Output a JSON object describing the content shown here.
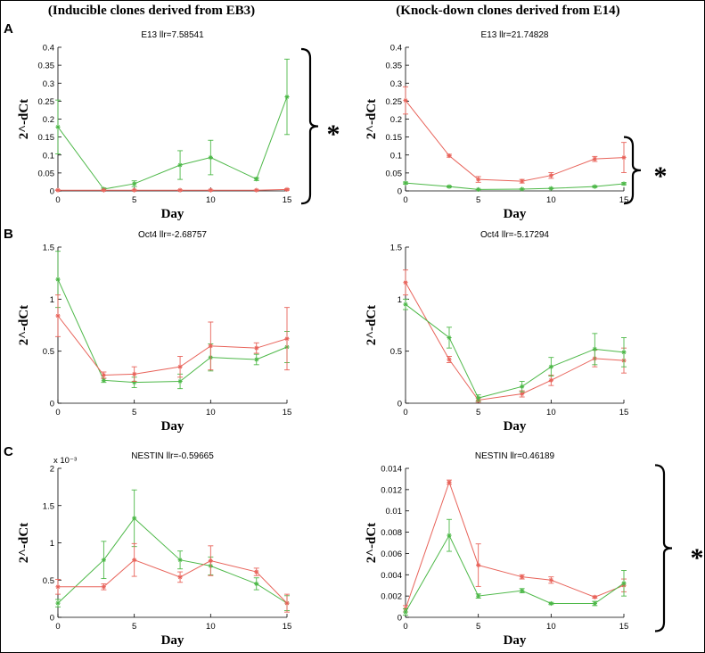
{
  "headers": {
    "left": "(Inducible clones derived from EB3)",
    "right": "(Knock-down clones derived from E14)"
  },
  "row_labels": [
    "A",
    "B",
    "C"
  ],
  "star": "*",
  "colors": {
    "red": "#e8635a",
    "green": "#4db848",
    "axis": "#000000"
  },
  "chart_data": [
    {
      "type": "line",
      "title": "E13 llr=7.58541",
      "xlabel": "Day",
      "ylabel": "2^-dCt",
      "xlim": [
        0,
        15
      ],
      "ylim": [
        0,
        0.4
      ],
      "xticks": [
        0,
        5,
        10,
        15
      ],
      "xtick_labels": [
        "0",
        "5",
        "10",
        "15"
      ],
      "yticks": [
        0,
        0.05,
        0.1,
        0.15,
        0.2,
        0.25,
        0.3,
        0.35,
        0.4
      ],
      "ytick_labels": [
        "0",
        "0.05",
        "0.1",
        "0.15",
        "0.2",
        "0.25",
        "0.3",
        "0.35",
        "0.4"
      ],
      "exponent_label": "",
      "series": [
        {
          "color": "green",
          "x": [
            0,
            3,
            5,
            8,
            10,
            13,
            15
          ],
          "y": [
            0.178,
            0.005,
            0.02,
            0.072,
            0.093,
            0.033,
            0.262
          ],
          "err": [
            0.075,
            0.003,
            0.008,
            0.04,
            0.048,
            0.004,
            0.105
          ]
        },
        {
          "color": "red",
          "x": [
            0,
            3,
            5,
            8,
            10,
            13,
            15
          ],
          "y": [
            0.002,
            0.002,
            0.002,
            0.002,
            0.002,
            0.002,
            0.004
          ],
          "err": [
            0.001,
            0.001,
            0.001,
            0.001,
            0.001,
            0.001,
            0.002
          ]
        }
      ],
      "bracket": {
        "y_top": 0.395,
        "y_bottom": -0.035
      }
    },
    {
      "type": "line",
      "title": "E13 llr=21.74828",
      "xlabel": "Day",
      "ylabel": "2^-dCt",
      "xlim": [
        0,
        15
      ],
      "ylim": [
        0,
        0.4
      ],
      "xticks": [
        0,
        5,
        10,
        15
      ],
      "xtick_labels": [
        "0",
        "5",
        "10",
        "15"
      ],
      "yticks": [
        0,
        0.05,
        0.1,
        0.15,
        0.2,
        0.25,
        0.3,
        0.35,
        0.4
      ],
      "ytick_labels": [
        "0",
        "0.05",
        "0.1",
        "0.15",
        "0.2",
        "0.25",
        "0.3",
        "0.35",
        "0.4"
      ],
      "exponent_label": "",
      "series": [
        {
          "color": "red",
          "x": [
            0,
            3,
            5,
            8,
            10,
            13,
            15
          ],
          "y": [
            0.252,
            0.098,
            0.032,
            0.027,
            0.043,
            0.089,
            0.093
          ],
          "err": [
            0.038,
            0.004,
            0.008,
            0.005,
            0.008,
            0.007,
            0.042
          ]
        },
        {
          "color": "green",
          "x": [
            0,
            3,
            5,
            8,
            10,
            13,
            15
          ],
          "y": [
            0.022,
            0.012,
            0.004,
            0.005,
            0.007,
            0.012,
            0.02
          ],
          "err": [
            0.003,
            0.002,
            0.001,
            0.001,
            0.001,
            0.002,
            0.003
          ]
        }
      ],
      "bracket": {
        "y_top": 0.15,
        "y_bottom": -0.035
      }
    },
    {
      "type": "line",
      "title": "Oct4 llr=-2.68757",
      "xlabel": "Day",
      "ylabel": "2^-dCt",
      "xlim": [
        0,
        15
      ],
      "ylim": [
        0,
        1.5
      ],
      "xticks": [
        0,
        5,
        10,
        15
      ],
      "xtick_labels": [
        "0",
        "5",
        "10",
        "15"
      ],
      "yticks": [
        0,
        0.5,
        1,
        1.5
      ],
      "ytick_labels": [
        "0",
        "0.5",
        "1",
        "1.5"
      ],
      "exponent_label": "",
      "series": [
        {
          "color": "green",
          "x": [
            0,
            3,
            5,
            8,
            10,
            13,
            15
          ],
          "y": [
            1.19,
            0.22,
            0.2,
            0.21,
            0.44,
            0.42,
            0.54
          ],
          "err": [
            0.27,
            0.02,
            0.05,
            0.07,
            0.13,
            0.05,
            0.15
          ]
        },
        {
          "color": "red",
          "x": [
            0,
            3,
            5,
            8,
            10,
            13,
            15
          ],
          "y": [
            0.84,
            0.27,
            0.28,
            0.35,
            0.55,
            0.53,
            0.62
          ],
          "err": [
            0.2,
            0.03,
            0.07,
            0.1,
            0.23,
            0.05,
            0.3
          ]
        }
      ]
    },
    {
      "type": "line",
      "title": "Oct4 llr=-5.17294",
      "xlabel": "Day",
      "ylabel": "2^-dCt",
      "xlim": [
        0,
        15
      ],
      "ylim": [
        0,
        1.5
      ],
      "xticks": [
        0,
        5,
        10,
        15
      ],
      "xtick_labels": [
        "0",
        "5",
        "10",
        "15"
      ],
      "yticks": [
        0,
        0.5,
        1,
        1.5
      ],
      "ytick_labels": [
        "0",
        "0.5",
        "1",
        "1.5"
      ],
      "exponent_label": "",
      "series": [
        {
          "color": "red",
          "x": [
            0,
            3,
            5,
            8,
            10,
            13,
            15
          ],
          "y": [
            1.16,
            0.42,
            0.03,
            0.09,
            0.22,
            0.43,
            0.41
          ],
          "err": [
            0.12,
            0.03,
            0.02,
            0.03,
            0.05,
            0.08,
            0.12
          ]
        },
        {
          "color": "green",
          "x": [
            0,
            3,
            5,
            8,
            10,
            13,
            15
          ],
          "y": [
            0.95,
            0.63,
            0.05,
            0.16,
            0.35,
            0.52,
            0.49
          ],
          "err": [
            0.05,
            0.1,
            0.03,
            0.05,
            0.09,
            0.15,
            0.14
          ]
        }
      ]
    },
    {
      "type": "line",
      "title": "NESTIN llr=-0.59665",
      "xlabel": "Day",
      "ylabel": "2^-dCt",
      "xlim": [
        0,
        15
      ],
      "ylim": [
        0,
        2
      ],
      "xticks": [
        0,
        5,
        10,
        15
      ],
      "xtick_labels": [
        "0",
        "5",
        "10",
        "15"
      ],
      "yticks": [
        0,
        0.5,
        1,
        1.5,
        2
      ],
      "ytick_labels": [
        "0",
        "0.5",
        "1",
        "1.5",
        "2"
      ],
      "exponent_label": "x 10⁻³",
      "series": [
        {
          "color": "green",
          "x": [
            0,
            3,
            5,
            8,
            10,
            13,
            15
          ],
          "y": [
            0.19,
            0.77,
            1.33,
            0.77,
            0.69,
            0.45,
            0.19
          ],
          "err": [
            0.05,
            0.25,
            0.38,
            0.12,
            0.12,
            0.08,
            0.1
          ]
        },
        {
          "color": "red",
          "x": [
            0,
            3,
            5,
            8,
            10,
            13,
            15
          ],
          "y": [
            0.41,
            0.41,
            0.77,
            0.54,
            0.76,
            0.61,
            0.19
          ],
          "err": [
            0.1,
            0.04,
            0.22,
            0.07,
            0.2,
            0.05,
            0.12
          ]
        }
      ]
    },
    {
      "type": "line",
      "title": "NESTIN llr=0.46189",
      "xlabel": "Day",
      "ylabel": "2^-dCt",
      "xlim": [
        0,
        15
      ],
      "ylim": [
        0,
        0.014
      ],
      "xticks": [
        0,
        5,
        10,
        15
      ],
      "xtick_labels": [
        "0",
        "5",
        "10",
        "15"
      ],
      "yticks": [
        0,
        0.002,
        0.004,
        0.006,
        0.008,
        0.01,
        0.012,
        0.014
      ],
      "ytick_labels": [
        "0",
        "0.002",
        "0.004",
        "0.006",
        "0.008",
        "0.01",
        "0.012",
        "0.014"
      ],
      "exponent_label": "",
      "series": [
        {
          "color": "red",
          "x": [
            0,
            3,
            5,
            8,
            10,
            13,
            15
          ],
          "y": [
            0.0008,
            0.0127,
            0.0049,
            0.0038,
            0.0035,
            0.0019,
            0.003
          ],
          "err": [
            0.0003,
            0.0002,
            0.002,
            0.0002,
            0.0003,
            0.0001,
            0.0006
          ]
        },
        {
          "color": "green",
          "x": [
            0,
            3,
            5,
            8,
            10,
            13,
            15
          ],
          "y": [
            0.0005,
            0.0077,
            0.002,
            0.0025,
            0.0013,
            0.0013,
            0.0032
          ],
          "err": [
            0.0003,
            0.0015,
            0.0002,
            0.0002,
            0.0001,
            0.0002,
            0.0012
          ]
        }
      ],
      "bracket": {
        "y_top": 0.0143,
        "y_bottom": -0.0013
      }
    }
  ]
}
